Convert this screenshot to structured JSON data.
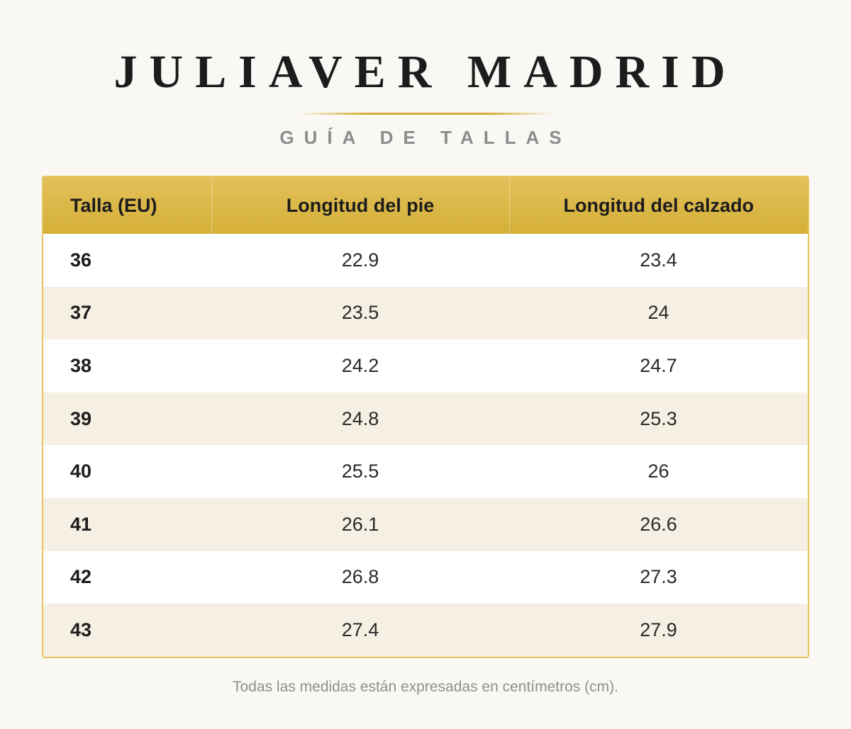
{
  "header": {
    "brand": "JULIAVER MADRID",
    "subtitle": "GUÍA DE TALLAS"
  },
  "table": {
    "columns": [
      "Talla (EU)",
      "Longitud del pie",
      "Longitud del calzado"
    ],
    "rows": [
      [
        "36",
        "22.9",
        "23.4"
      ],
      [
        "37",
        "23.5",
        "24"
      ],
      [
        "38",
        "24.2",
        "24.7"
      ],
      [
        "39",
        "24.8",
        "25.3"
      ],
      [
        "40",
        "25.5",
        "26"
      ],
      [
        "41",
        "26.1",
        "26.6"
      ],
      [
        "42",
        "26.8",
        "27.3"
      ],
      [
        "43",
        "27.4",
        "27.9"
      ]
    ]
  },
  "footnote": "Todas las medidas están expresadas en centímetros (cm).",
  "colors": {
    "accent": "#d4af37",
    "background": "#faf8f4",
    "stripe": "#f6efe3",
    "text": "#1c1c1c",
    "muted": "#8c8c8c"
  }
}
